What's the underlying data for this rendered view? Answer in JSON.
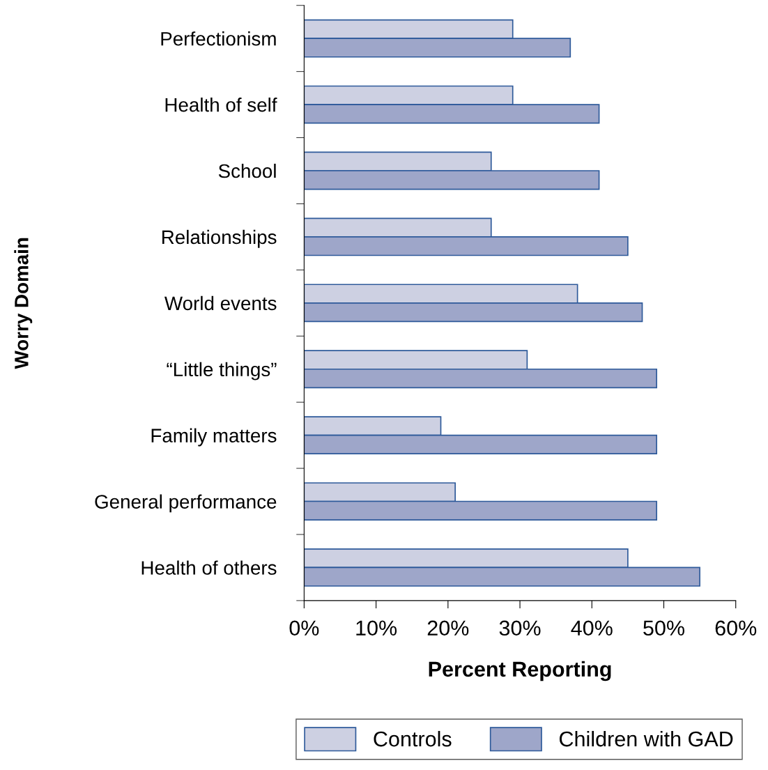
{
  "chart_data": {
    "type": "bar",
    "orientation": "horizontal",
    "xlabel": "Percent Reporting",
    "ylabel": "Worry Domain",
    "categories": [
      "Perfectionism",
      "Health of self",
      "School",
      "Relationships",
      "World events",
      "“Little things”",
      "Family matters",
      "General performance",
      "Health of others"
    ],
    "series": [
      {
        "name": "Controls",
        "color": "#cdd0e2",
        "values": [
          29,
          29,
          26,
          26,
          38,
          31,
          19,
          21,
          45
        ]
      },
      {
        "name": "Children with GAD",
        "color": "#9ea6c9",
        "values": [
          37,
          41,
          41,
          45,
          47,
          49,
          49,
          49,
          55
        ]
      }
    ],
    "xlim": [
      0,
      60
    ],
    "xticks": [
      {
        "value": 0,
        "label": "0%"
      },
      {
        "value": 10,
        "label": "10%"
      },
      {
        "value": 20,
        "label": "20%"
      },
      {
        "value": 30,
        "label": "30%"
      },
      {
        "value": 40,
        "label": "40%"
      },
      {
        "value": 50,
        "label": "50%"
      },
      {
        "value": 60,
        "label": "60%"
      }
    ],
    "grid": false,
    "legend": "bottom"
  }
}
